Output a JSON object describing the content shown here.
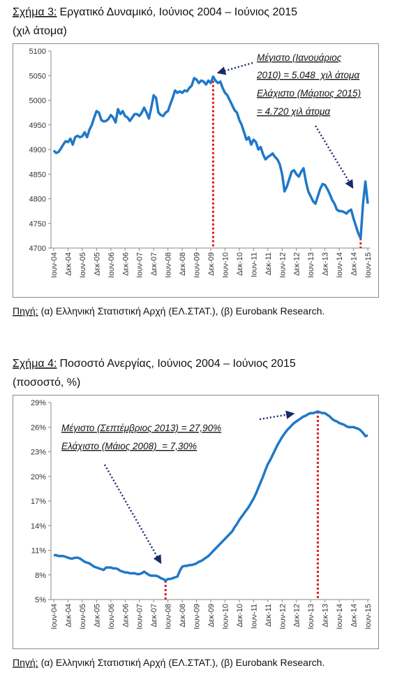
{
  "chart_data": [
    {
      "type": "line",
      "figure_label": "Σχήμα 3:",
      "title": "Εργατικό Δυναμικό, Ιούνιος 2004 – Ιούνιος 2015",
      "subtitle": "(χιλ άτομα)",
      "categories": [
        "Ιουν-04",
        null,
        null,
        null,
        null,
        null,
        "Δεκ-04",
        null,
        null,
        null,
        null,
        null,
        "Ιουν-05",
        null,
        null,
        null,
        null,
        null,
        "Δεκ-05",
        null,
        null,
        null,
        null,
        null,
        "Ιουν-06",
        null,
        null,
        null,
        null,
        null,
        "Δεκ-06",
        null,
        null,
        null,
        null,
        null,
        "Ιουν-07",
        null,
        null,
        null,
        null,
        null,
        "Δεκ-07",
        null,
        null,
        null,
        null,
        null,
        "Ιουν-08",
        null,
        null,
        null,
        null,
        null,
        "Δεκ-08",
        null,
        null,
        null,
        null,
        null,
        "Ιουν-09",
        null,
        null,
        null,
        null,
        null,
        "Δεκ-09",
        null,
        null,
        null,
        null,
        null,
        "Ιουν-10",
        null,
        null,
        null,
        null,
        null,
        "Δεκ-10",
        null,
        null,
        null,
        null,
        null,
        "Ιουν-11",
        null,
        null,
        null,
        null,
        null,
        "Δεκ-11",
        null,
        null,
        null,
        null,
        null,
        "Ιουν-12",
        null,
        null,
        null,
        null,
        null,
        "Δεκ-12",
        null,
        null,
        null,
        null,
        null,
        "Ιουν-13",
        null,
        null,
        null,
        null,
        null,
        "Δεκ-13",
        null,
        null,
        null,
        null,
        null,
        "Ιουν-14",
        null,
        null,
        null,
        null,
        null,
        "Δεκ-14",
        null,
        null,
        null,
        null,
        null,
        "Ιουν-15"
      ],
      "values": [
        4898,
        4893,
        4895,
        4902,
        4910,
        4917,
        4915,
        4922,
        4910,
        4925,
        4928,
        4925,
        4927,
        4935,
        4925,
        4940,
        4950,
        4965,
        4978,
        4975,
        4960,
        4957,
        4958,
        4962,
        4970,
        4965,
        4955,
        4982,
        4972,
        4978,
        4968,
        4965,
        4958,
        4965,
        4972,
        4972,
        4968,
        4975,
        4985,
        4975,
        4963,
        4985,
        5010,
        5005,
        4975,
        4970,
        4968,
        4975,
        4978,
        4992,
        5005,
        5020,
        5015,
        5018,
        5015,
        5020,
        5018,
        5025,
        5030,
        5045,
        5042,
        5035,
        5040,
        5038,
        5032,
        5040,
        5035,
        5048,
        5040,
        5035,
        5038,
        5025,
        5015,
        5010,
        5000,
        4990,
        4980,
        4975,
        4960,
        4950,
        4935,
        4920,
        4925,
        4910,
        4920,
        4915,
        4900,
        4905,
        4890,
        4880,
        4885,
        4888,
        4892,
        4885,
        4880,
        4870,
        4850,
        4815,
        4825,
        4840,
        4855,
        4858,
        4850,
        4845,
        4855,
        4862,
        4835,
        4815,
        4805,
        4795,
        4790,
        4805,
        4820,
        4830,
        4828,
        4820,
        4810,
        4798,
        4790,
        4778,
        4775,
        4775,
        4773,
        4770,
        4775,
        4778,
        4760,
        4745,
        4730,
        4720,
        4790,
        4835,
        4790
      ],
      "color": "#1f78c8",
      "ylim": [
        4700,
        5100
      ],
      "yticks": [
        4700,
        4750,
        4800,
        4850,
        4900,
        4950,
        5000,
        5050,
        5100
      ],
      "annotations": [
        "Μέγιστο (Ιανουάριος",
        "2010) = 5.048  χιλ άτομα",
        "Ελάχιστο (Μάρτιος 2015)",
        "= 4.720 χιλ άτομα"
      ],
      "source_label": "Πηγή:",
      "source": "(α) Ελληνική Στατιστική Αρχή (ΕΛ.ΣΤΑΤ.), (β) Eurobank Research."
    },
    {
      "type": "line",
      "figure_label": "Σχήμα 4:",
      "title": "Ποσοστό Ανεργίας, Ιούνιος 2004 – Ιούνιος 2015",
      "subtitle": "(ποσοστό, %)",
      "categories": [
        "Ιουν-04",
        null,
        null,
        null,
        null,
        null,
        "Δεκ-04",
        null,
        null,
        null,
        null,
        null,
        "Ιουν-05",
        null,
        null,
        null,
        null,
        null,
        "Δεκ-05",
        null,
        null,
        null,
        null,
        null,
        "Ιουν-06",
        null,
        null,
        null,
        null,
        null,
        "Δεκ-06",
        null,
        null,
        null,
        null,
        null,
        "Ιουν-07",
        null,
        null,
        null,
        null,
        null,
        "Δεκ-07",
        null,
        null,
        null,
        null,
        null,
        "Ιουν-08",
        null,
        null,
        null,
        null,
        null,
        "Δεκ-08",
        null,
        null,
        null,
        null,
        null,
        "Ιουν-09",
        null,
        null,
        null,
        null,
        null,
        "Δεκ-09",
        null,
        null,
        null,
        null,
        null,
        "Ιουν-10",
        null,
        null,
        null,
        null,
        null,
        "Δεκ-10",
        null,
        null,
        null,
        null,
        null,
        "Ιουν-11",
        null,
        null,
        null,
        null,
        null,
        "Δεκ-11",
        null,
        null,
        null,
        null,
        null,
        "Ιουν-12",
        null,
        null,
        null,
        null,
        null,
        "Δεκ-12",
        null,
        null,
        null,
        null,
        null,
        "Ιουν-13",
        null,
        null,
        null,
        null,
        null,
        "Δεκ-13",
        null,
        null,
        null,
        null,
        null,
        "Ιουν-14",
        null,
        null,
        null,
        null,
        null,
        "Δεκ-14",
        null,
        null,
        null,
        null,
        null,
        "Ιουν-15"
      ],
      "values": [
        10.4,
        10.4,
        10.3,
        10.3,
        10.3,
        10.2,
        10.1,
        10.0,
        10.0,
        10.1,
        10.1,
        10.0,
        9.8,
        9.6,
        9.5,
        9.4,
        9.2,
        9.0,
        8.9,
        8.8,
        8.7,
        8.6,
        8.9,
        8.9,
        8.9,
        8.8,
        8.8,
        8.7,
        8.5,
        8.4,
        8.3,
        8.3,
        8.2,
        8.2,
        8.2,
        8.1,
        8.1,
        8.2,
        8.4,
        8.2,
        8.0,
        7.9,
        7.9,
        7.9,
        7.8,
        7.6,
        7.5,
        7.3,
        7.5,
        7.5,
        7.6,
        7.7,
        7.8,
        8.5,
        9.0,
        9.1,
        9.1,
        9.2,
        9.2,
        9.3,
        9.4,
        9.6,
        9.7,
        9.9,
        10.1,
        10.3,
        10.6,
        10.9,
        11.2,
        11.5,
        11.8,
        12.1,
        12.4,
        12.7,
        13.0,
        13.3,
        13.8,
        14.2,
        14.7,
        15.1,
        15.5,
        15.9,
        16.3,
        16.8,
        17.3,
        17.9,
        18.6,
        19.3,
        20.0,
        20.8,
        21.5,
        22.0,
        22.6,
        23.2,
        23.8,
        24.3,
        24.8,
        25.2,
        25.6,
        25.9,
        26.2,
        26.5,
        26.7,
        26.9,
        27.1,
        27.3,
        27.4,
        27.6,
        27.7,
        27.7,
        27.8,
        27.9,
        27.8,
        27.7,
        27.7,
        27.5,
        27.3,
        27.0,
        26.8,
        26.7,
        26.5,
        26.4,
        26.3,
        26.1,
        26.0,
        26.0,
        26.0,
        25.9,
        25.8,
        25.6,
        25.3,
        24.9,
        25.0
      ],
      "color": "#1f78c8",
      "ylim": [
        5,
        29
      ],
      "yticks": [
        {
          "value": 5,
          "label": "5%"
        },
        {
          "value": 8,
          "label": "8%"
        },
        {
          "value": 11,
          "label": "11%"
        },
        {
          "value": 14,
          "label": "14%"
        },
        {
          "value": 17,
          "label": "17%"
        },
        {
          "value": 20,
          "label": "20%"
        },
        {
          "value": 23,
          "label": "23%"
        },
        {
          "value": 26,
          "label": "26%"
        },
        {
          "value": 29,
          "label": "29%"
        }
      ],
      "annotations": [
        "Μέγιστο (Σεπτέμβριος 2013) = 27,90%",
        "Ελάχιστο (Μάιος 2008)  = 7,30%"
      ],
      "source_label": "Πηγή:",
      "source": "(α) Ελληνική Στατιστική Αρχή (ΕΛ.ΣΤΑΤ.), (β) Eurobank Research."
    }
  ]
}
